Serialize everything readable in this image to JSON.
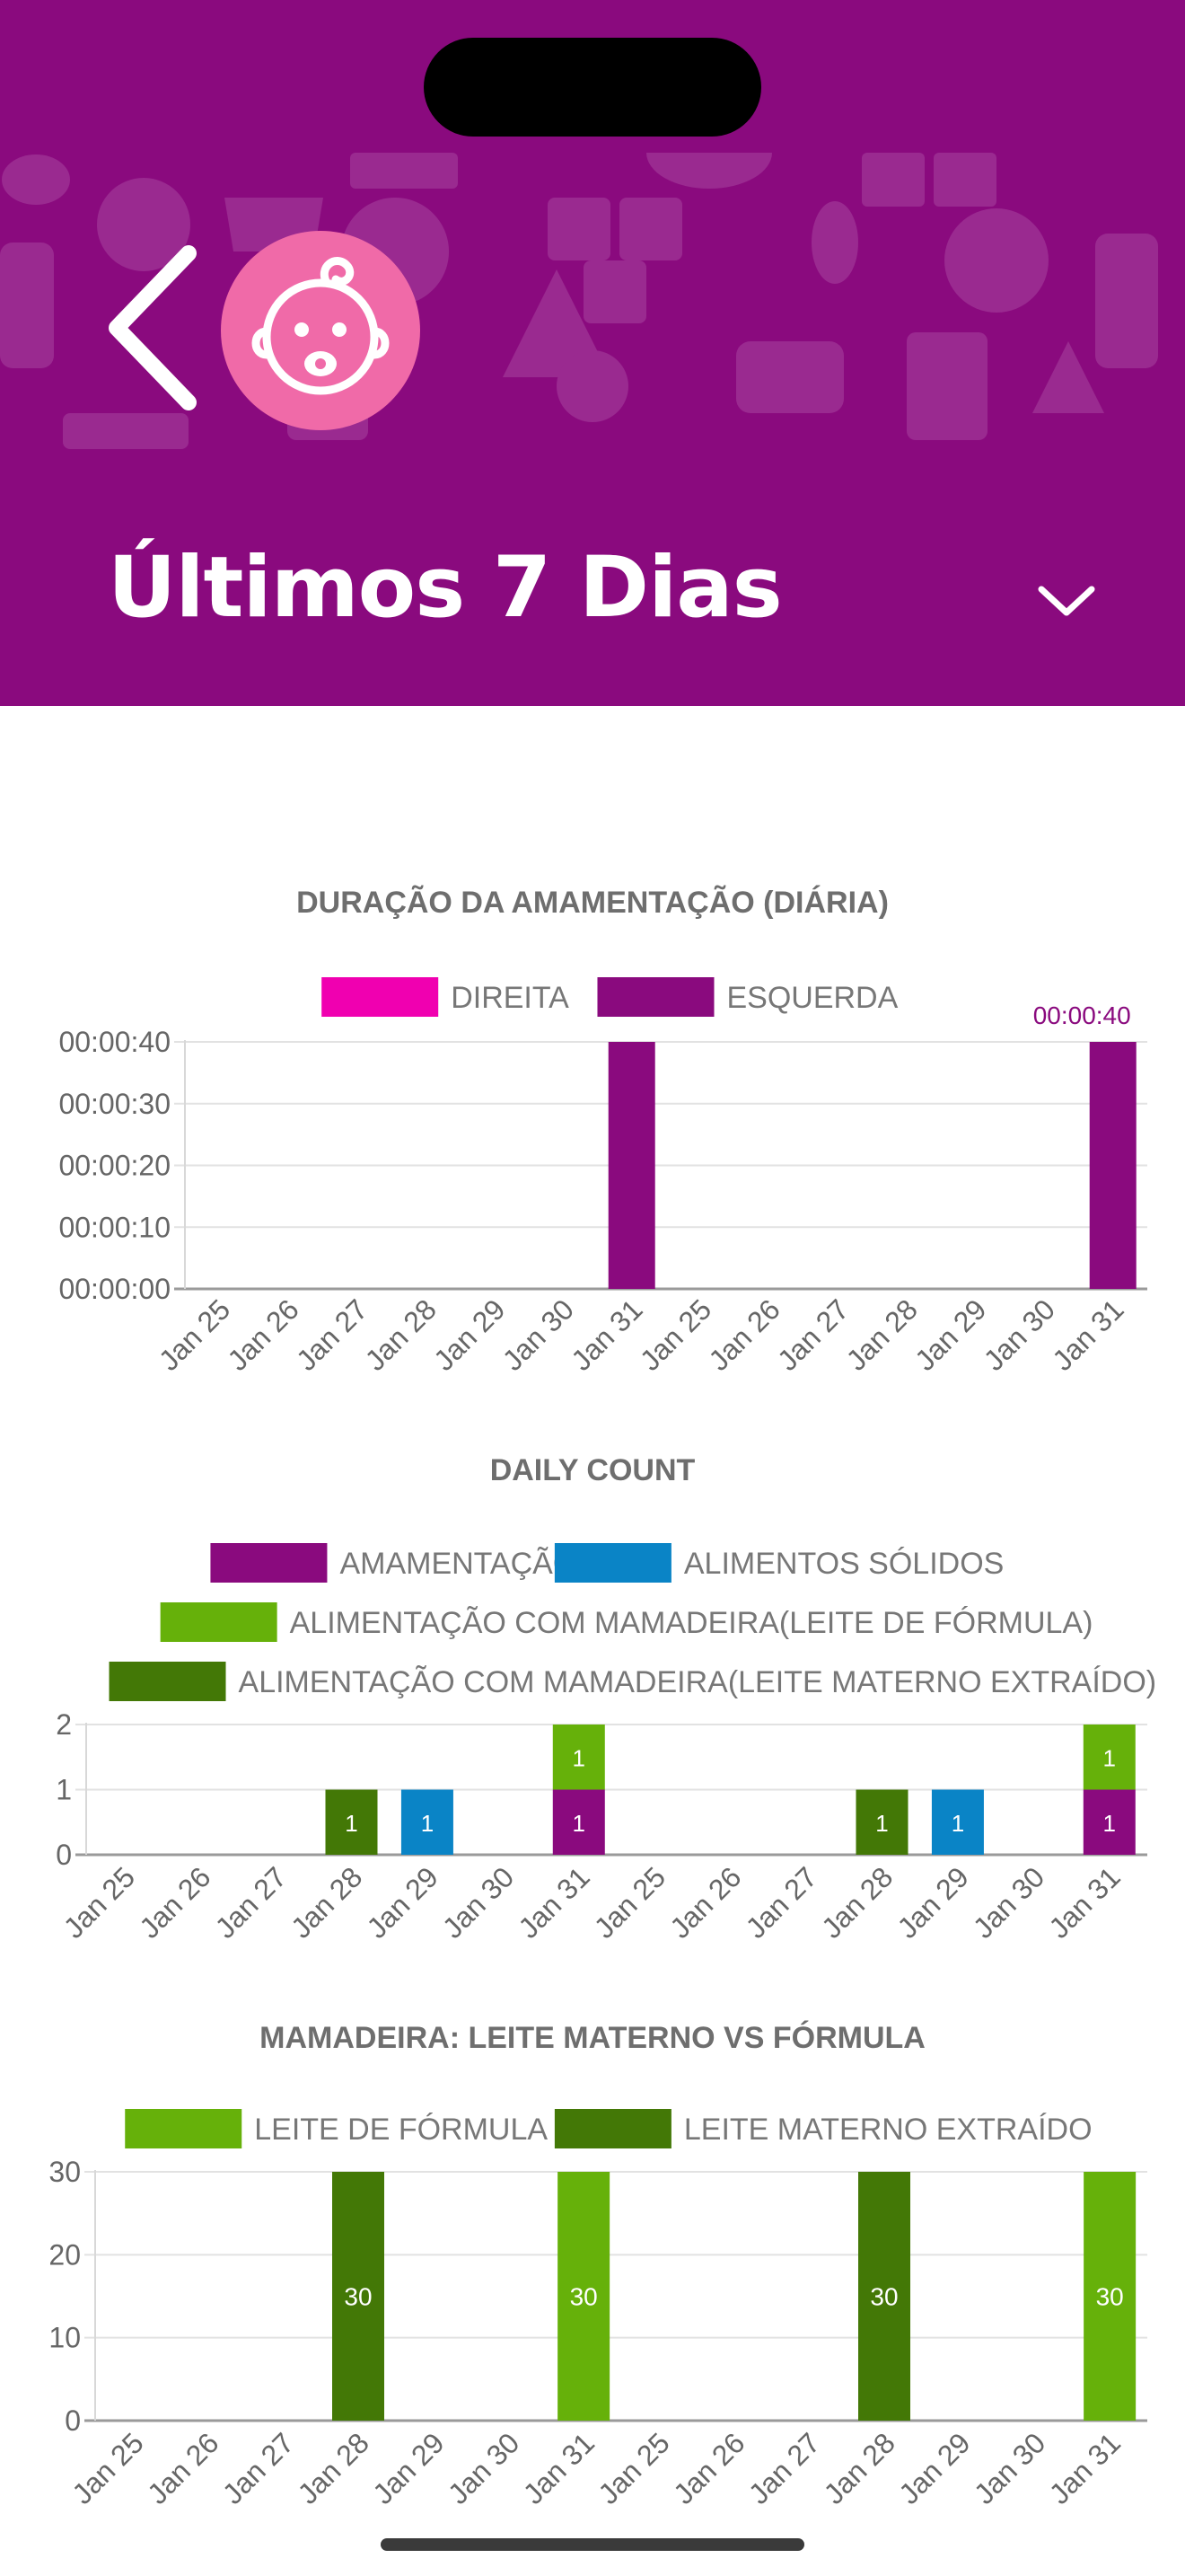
{
  "header": {
    "title": "Últimos 7 Dias",
    "colors": {
      "background": "#8a0a7e",
      "pattern": "#9a2a90",
      "avatar": "#f06aa8"
    },
    "icons": {
      "back": "chevron-left-icon",
      "avatar": "baby-face-icon",
      "dropdown": "chevron-down-icon"
    }
  },
  "charts": [
    {
      "title": "DURAÇÃO DA AMAMENTAÇÃO (DIÁRIA)",
      "chart_data": {
        "type": "bar",
        "stacked": true,
        "categories": [
          "Jan 25",
          "Jan 26",
          "Jan 27",
          "Jan 28",
          "Jan 29",
          "Jan 30",
          "Jan 31",
          "Jan 25",
          "Jan 26",
          "Jan 27",
          "Jan 28",
          "Jan 29",
          "Jan 30",
          "Jan 31"
        ],
        "y_ticks": [
          "00:00:00",
          "00:00:10",
          "00:00:20",
          "00:00:30",
          "00:00:40"
        ],
        "ylim": [
          0,
          40
        ],
        "series": [
          {
            "name": "DIREITA",
            "color": "#f000b0",
            "values": [
              0,
              0,
              0,
              0,
              0,
              0,
              0,
              0,
              0,
              0,
              0,
              0,
              0,
              0
            ],
            "labels": []
          },
          {
            "name": "ESQUERDA",
            "color": "#8a0a7e",
            "values": [
              0,
              0,
              0,
              0,
              0,
              0,
              40,
              0,
              0,
              0,
              0,
              0,
              0,
              40
            ],
            "labels": []
          }
        ],
        "annotations": [
          {
            "text": "00:00:40",
            "index": 13
          }
        ],
        "legend": "top",
        "grid": true
      }
    },
    {
      "title": "DAILY COUNT",
      "chart_data": {
        "type": "bar",
        "stacked": true,
        "categories": [
          "Jan 25",
          "Jan 26",
          "Jan 27",
          "Jan 28",
          "Jan 29",
          "Jan 30",
          "Jan 31",
          "Jan 25",
          "Jan 26",
          "Jan 27",
          "Jan 28",
          "Jan 29",
          "Jan 30",
          "Jan 31"
        ],
        "y_ticks": [
          "0",
          "1",
          "2"
        ],
        "ylim": [
          0,
          2
        ],
        "series": [
          {
            "name": "AMAMENTAÇÃO",
            "color": "#8a0a7e",
            "values": [
              0,
              0,
              0,
              0,
              0,
              0,
              1,
              0,
              0,
              0,
              0,
              0,
              0,
              1
            ],
            "labels": [
              "",
              "",
              "",
              "",
              "",
              "",
              "1",
              "",
              "",
              "",
              "",
              "",
              "",
              "1"
            ]
          },
          {
            "name": "ALIMENTOS SÓLIDOS",
            "color": "#0a84c6",
            "values": [
              0,
              0,
              0,
              0,
              1,
              0,
              0,
              0,
              0,
              0,
              0,
              1,
              0,
              0
            ],
            "labels": [
              "",
              "",
              "",
              "",
              "1",
              "",
              "",
              "",
              "",
              "",
              "",
              "1",
              "",
              ""
            ]
          },
          {
            "name": "ALIMENTAÇÃO COM MAMADEIRA(LEITE DE FÓRMULA)",
            "color": "#66b10a",
            "values": [
              0,
              0,
              0,
              0,
              0,
              0,
              1,
              0,
              0,
              0,
              0,
              0,
              0,
              1
            ],
            "labels": [
              "",
              "",
              "",
              "",
              "",
              "",
              "1",
              "",
              "",
              "",
              "",
              "",
              "",
              "1"
            ]
          },
          {
            "name": "ALIMENTAÇÃO COM MAMADEIRA(LEITE MATERNO EXTRAÍDO)",
            "color": "#437806",
            "values": [
              0,
              0,
              0,
              1,
              0,
              0,
              0,
              0,
              0,
              0,
              1,
              0,
              0,
              0
            ],
            "labels": [
              "",
              "",
              "",
              "1",
              "",
              "",
              "",
              "",
              "",
              "",
              "1",
              "",
              "",
              ""
            ]
          }
        ],
        "legend": "top",
        "grid": true
      }
    },
    {
      "title": "MAMADEIRA: LEITE MATERNO VS FÓRMULA",
      "chart_data": {
        "type": "bar",
        "stacked": true,
        "categories": [
          "Jan 25",
          "Jan 26",
          "Jan 27",
          "Jan 28",
          "Jan 29",
          "Jan 30",
          "Jan 31",
          "Jan 25",
          "Jan 26",
          "Jan 27",
          "Jan 28",
          "Jan 29",
          "Jan 30",
          "Jan 31"
        ],
        "y_ticks": [
          "0",
          "10",
          "20",
          "30"
        ],
        "ylim": [
          0,
          30
        ],
        "series": [
          {
            "name": "LEITE DE FÓRMULA",
            "color": "#66b10a",
            "values": [
              0,
              0,
              0,
              0,
              0,
              0,
              30,
              0,
              0,
              0,
              0,
              0,
              0,
              30
            ],
            "labels": [
              "",
              "",
              "",
              "",
              "",
              "",
              "30",
              "",
              "",
              "",
              "",
              "",
              "",
              "30"
            ]
          },
          {
            "name": "LEITE MATERNO EXTRAÍDO",
            "color": "#437806",
            "values": [
              0,
              0,
              0,
              30,
              0,
              0,
              0,
              0,
              0,
              0,
              30,
              0,
              0,
              0
            ],
            "labels": [
              "",
              "",
              "",
              "30",
              "",
              "",
              "",
              "",
              "",
              "",
              "30",
              "",
              "",
              ""
            ]
          }
        ],
        "legend": "top",
        "grid": true
      }
    }
  ]
}
